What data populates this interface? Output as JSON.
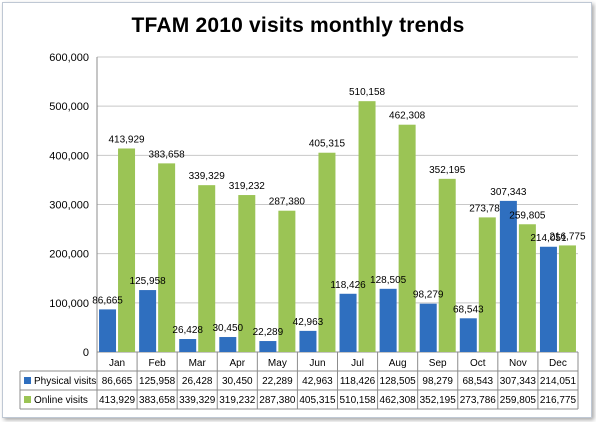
{
  "chart_data": {
    "type": "bar",
    "title": "TFAM 2010 visits monthly trends",
    "categories": [
      "Jan",
      "Feb",
      "Mar",
      "Apr",
      "May",
      "Jun",
      "Jul",
      "Aug",
      "Sep",
      "Oct",
      "Nov",
      "Dec"
    ],
    "series": [
      {
        "name": "Physical visits",
        "color": "#2f6fbf",
        "values": [
          86665,
          125958,
          26428,
          30450,
          22289,
          42963,
          118426,
          128505,
          98279,
          68543,
          307343,
          214051
        ],
        "labels": [
          "86,665",
          "125,958",
          "26,428",
          "30,450",
          "22,289",
          "42,963",
          "118,426",
          "128,505",
          "98,279",
          "68,543",
          "307,343",
          "214,051"
        ]
      },
      {
        "name": "Online visits",
        "color": "#9bc455",
        "values": [
          413929,
          383658,
          339329,
          319232,
          287380,
          405315,
          510158,
          462308,
          352195,
          273786,
          259805,
          216775
        ],
        "labels": [
          "413,929",
          "383,658",
          "339,329",
          "319,232",
          "287,380",
          "405,315",
          "510,158",
          "462,308",
          "352,195",
          "273,786",
          "259,805",
          "216,775"
        ]
      }
    ],
    "ylim": [
      0,
      600000
    ],
    "yticks": [
      "0",
      "100,000",
      "200,000",
      "300,000",
      "400,000",
      "500,000",
      "600,000"
    ],
    "grid": true,
    "legend": "data table below chart"
  }
}
